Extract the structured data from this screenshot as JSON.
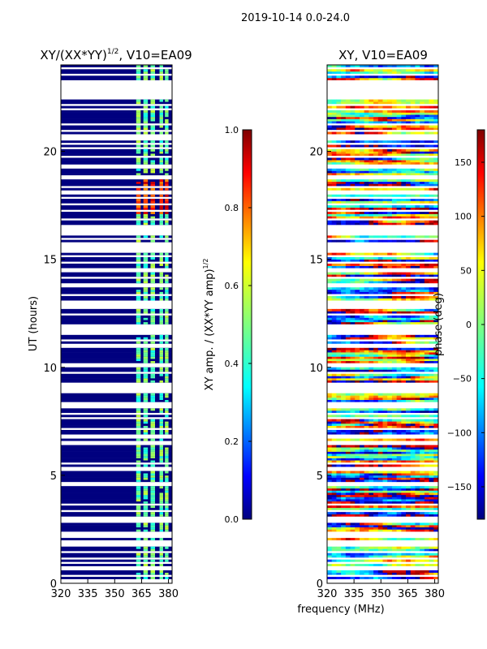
{
  "suptitle": "2019-10-14 0.0-24.0",
  "figure_xlabel": "frequency (MHz)",
  "chart_data": [
    {
      "type": "heatmap",
      "title_main": "XY/(XX*YY)",
      "title_sup": "1/2",
      "title_rest": ", V10=EA09",
      "xlabel": "",
      "ylabel": "UT (hours)",
      "xlim": [
        320,
        382
      ],
      "ylim": [
        0,
        24
      ],
      "x_ticks": [
        "320",
        "335",
        "350",
        "365",
        "380"
      ],
      "x_tick_values": [
        320,
        335,
        350,
        365,
        380
      ],
      "y_ticks": [
        "0",
        "5",
        "10",
        "15",
        "20"
      ],
      "y_tick_values": [
        0,
        5,
        10,
        15,
        20
      ],
      "colorbar": {
        "label_main": "XY amp. / (XX*YY amp)",
        "label_sup": "1/2",
        "range": [
          0.0,
          1.0
        ],
        "ticks": [
          "0.0",
          "0.2",
          "0.4",
          "0.6",
          "0.8",
          "1.0"
        ],
        "tick_values": [
          0.0,
          0.2,
          0.4,
          0.6,
          0.8,
          1.0
        ],
        "colormap": "jet"
      }
    },
    {
      "type": "heatmap",
      "title": "XY, V10=EA09",
      "xlabel": "frequency (MHz)",
      "ylabel": "",
      "xlim": [
        320,
        382
      ],
      "ylim": [
        0,
        24
      ],
      "x_ticks": [
        "320",
        "335",
        "350",
        "365",
        "380"
      ],
      "x_tick_values": [
        320,
        335,
        350,
        365,
        380
      ],
      "y_ticks": [
        "0",
        "5",
        "10",
        "15",
        "20"
      ],
      "y_tick_values": [
        0,
        5,
        10,
        15,
        20
      ],
      "colorbar": {
        "label": "phase (deg)",
        "range": [
          -180,
          180
        ],
        "ticks": [
          "−150",
          "−100",
          "−50",
          "0",
          "50",
          "100",
          "150"
        ],
        "tick_values": [
          -150,
          -100,
          -50,
          0,
          50,
          100,
          150
        ],
        "colormap": "jet"
      }
    }
  ],
  "colors": {
    "jet": [
      "#00007f",
      "#0000ff",
      "#007fff",
      "#00ffff",
      "#7fff7f",
      "#ffff00",
      "#ff7f00",
      "#ff0000",
      "#7f0000"
    ]
  }
}
